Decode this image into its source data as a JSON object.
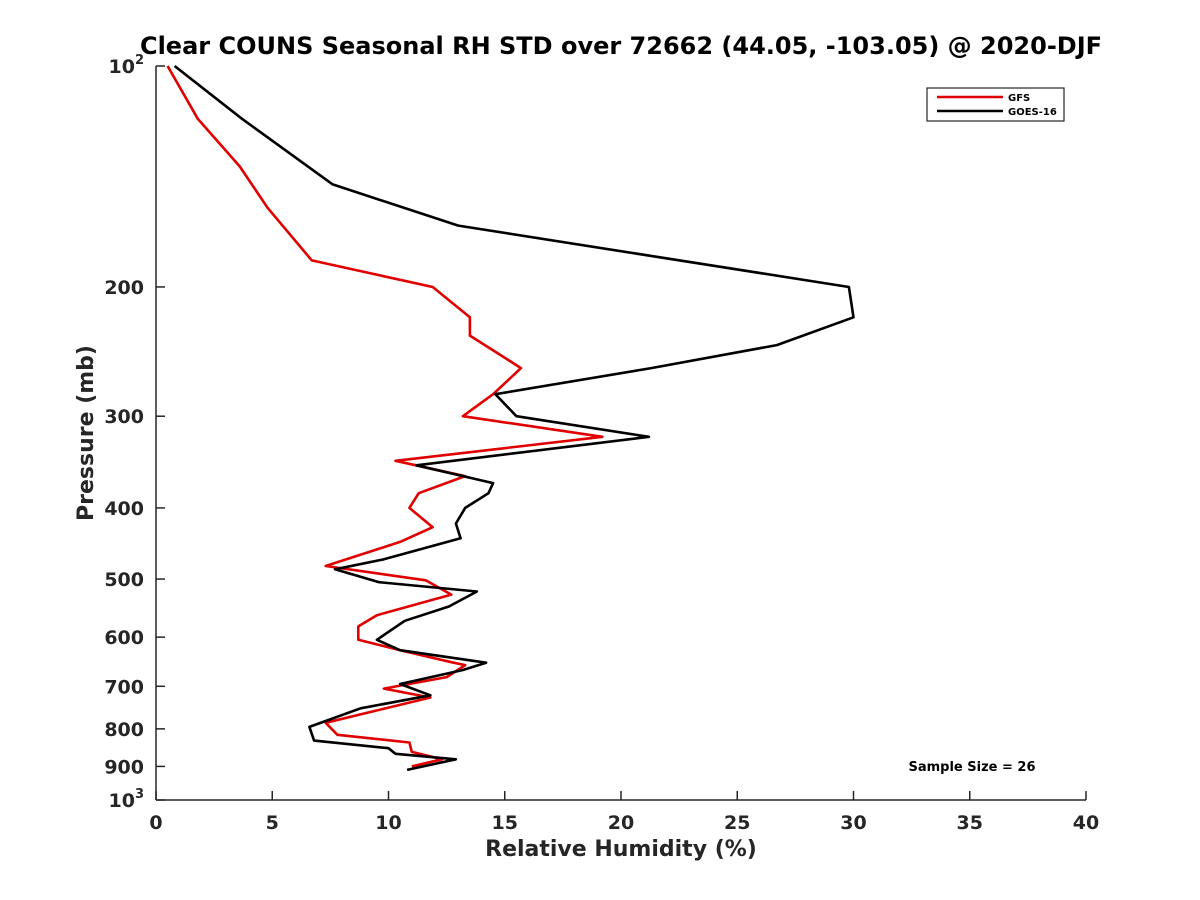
{
  "chart_data": {
    "type": "line",
    "title": "Clear COUNS Seasonal RH STD over 72662 (44.05, -103.05) @ 2020-DJF",
    "xlabel": "Relative Humidity (%)",
    "ylabel": "Pressure (mb)",
    "xlim": [
      0,
      40
    ],
    "ylim": [
      100,
      1000
    ],
    "yscale": "log",
    "y_reversed": true,
    "grid": false,
    "xticks": [
      0,
      5,
      10,
      15,
      20,
      25,
      30,
      35,
      40
    ],
    "yticks": [
      100,
      200,
      300,
      400,
      500,
      600,
      700,
      800,
      900,
      1000
    ],
    "legend_position": "top-right",
    "annotation": "Sample Size = 26",
    "series": [
      {
        "name": "GFS",
        "color": "#e00000",
        "points": [
          [
            0.5,
            100
          ],
          [
            1.8,
            118
          ],
          [
            3.6,
            137
          ],
          [
            4.8,
            156
          ],
          [
            6.7,
            184
          ],
          [
            11.9,
            200
          ],
          [
            13.5,
            220
          ],
          [
            13.5,
            233
          ],
          [
            15.7,
            258
          ],
          [
            14.5,
            280
          ],
          [
            13.2,
            300
          ],
          [
            19.2,
            320
          ],
          [
            10.3,
            345
          ],
          [
            13.3,
            362
          ],
          [
            11.3,
            382
          ],
          [
            10.9,
            400
          ],
          [
            11.9,
            425
          ],
          [
            10.5,
            445
          ],
          [
            7.3,
            480
          ],
          [
            11.6,
            502
          ],
          [
            12.7,
            525
          ],
          [
            9.5,
            560
          ],
          [
            8.7,
            580
          ],
          [
            8.7,
            605
          ],
          [
            10.5,
            625
          ],
          [
            12.8,
            650
          ],
          [
            13.3,
            655
          ],
          [
            12.5,
            680
          ],
          [
            9.8,
            705
          ],
          [
            11.8,
            725
          ],
          [
            7.3,
            785
          ],
          [
            7.8,
            815
          ],
          [
            10.9,
            835
          ],
          [
            11.0,
            860
          ],
          [
            12.3,
            880
          ],
          [
            11.0,
            900
          ]
        ]
      },
      {
        "name": "GOES-16",
        "color": "#000000",
        "points": [
          [
            0.8,
            100
          ],
          [
            3.7,
            118
          ],
          [
            7.6,
            145
          ],
          [
            13.0,
            165
          ],
          [
            29.8,
            200
          ],
          [
            30.0,
            220
          ],
          [
            26.7,
            240
          ],
          [
            21.3,
            258
          ],
          [
            14.6,
            280
          ],
          [
            15.5,
            300
          ],
          [
            21.2,
            320
          ],
          [
            11.2,
            350
          ],
          [
            14.5,
            370
          ],
          [
            14.3,
            382
          ],
          [
            13.3,
            400
          ],
          [
            12.9,
            420
          ],
          [
            13.1,
            440
          ],
          [
            9.8,
            470
          ],
          [
            7.7,
            485
          ],
          [
            9.6,
            505
          ],
          [
            13.8,
            520
          ],
          [
            12.6,
            545
          ],
          [
            10.7,
            570
          ],
          [
            9.5,
            605
          ],
          [
            10.5,
            625
          ],
          [
            14.2,
            650
          ],
          [
            13.2,
            665
          ],
          [
            10.5,
            695
          ],
          [
            11.8,
            720
          ],
          [
            8.8,
            750
          ],
          [
            6.6,
            795
          ],
          [
            6.8,
            830
          ],
          [
            10.0,
            850
          ],
          [
            10.3,
            865
          ],
          [
            12.9,
            880
          ],
          [
            10.8,
            910
          ]
        ]
      }
    ]
  }
}
